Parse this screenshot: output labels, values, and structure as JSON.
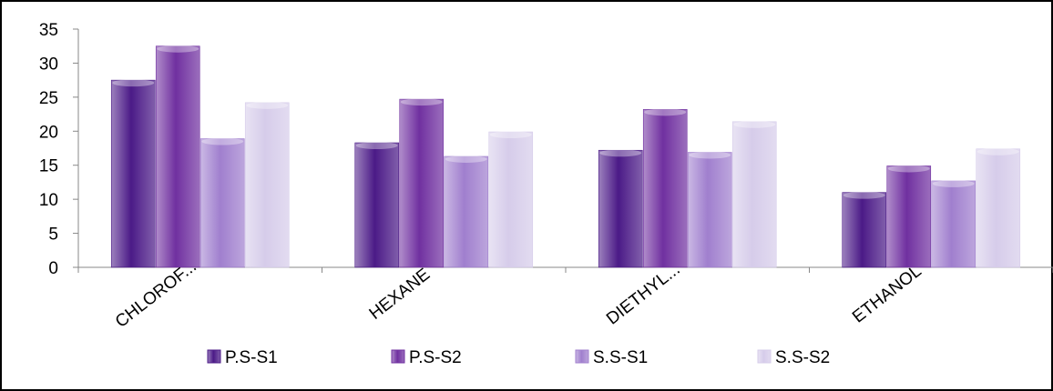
{
  "chart_data": {
    "type": "bar",
    "categories": [
      "CHLOROF...",
      "HEXANE",
      "DIETHYL...",
      "ETHANOL"
    ],
    "series": [
      {
        "name": "P.S-S1",
        "values": [
          27.5,
          18.3,
          17.2,
          11.0
        ],
        "color": "#4b1a87"
      },
      {
        "name": "P.S-S2",
        "values": [
          32.5,
          24.7,
          23.2,
          14.9
        ],
        "color": "#7030a0"
      },
      {
        "name": "S.S-S1",
        "values": [
          18.9,
          16.3,
          16.9,
          12.7
        ],
        "color": "#a07fce"
      },
      {
        "name": "S.S-S2",
        "values": [
          24.2,
          19.9,
          21.4,
          17.4
        ],
        "color": "#d6ccea"
      }
    ],
    "yticks": [
      0,
      5,
      10,
      15,
      20,
      25,
      30,
      35
    ],
    "ylim": [
      0,
      35
    ],
    "title": "",
    "xlabel": "",
    "ylabel": "",
    "legend_position": "bottom",
    "grid": false
  }
}
